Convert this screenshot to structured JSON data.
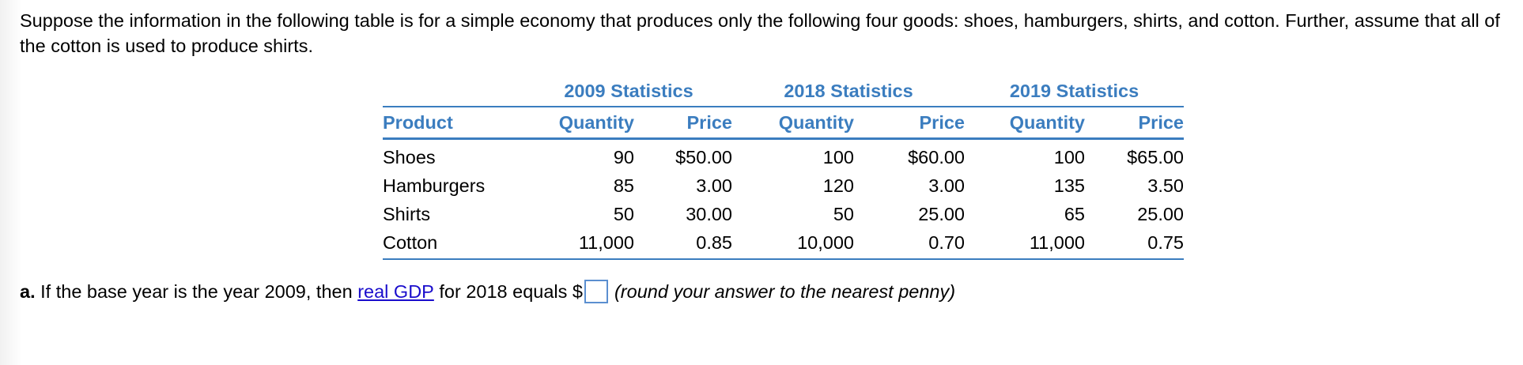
{
  "intro_text": "Suppose the information in the following table is for a simple economy that produces only the following four goods: shoes, hamburgers, shirts, and cotton.  Further, assume that all of the cotton is used to produce shirts.",
  "table": {
    "year_headers": [
      "2009 Statistics",
      "2018 Statistics",
      "2019 Statistics"
    ],
    "columns": [
      "Product",
      "Quantity",
      "Price",
      "Quantity",
      "Price",
      "Quantity",
      "Price"
    ],
    "rows": [
      {
        "product": "Shoes",
        "cells": [
          "90",
          "$50.00",
          "100",
          "$60.00",
          "100",
          "$65.00"
        ]
      },
      {
        "product": "Hamburgers",
        "cells": [
          "85",
          "3.00",
          "120",
          "3.00",
          "135",
          "3.50"
        ]
      },
      {
        "product": "Shirts",
        "cells": [
          "50",
          "30.00",
          "50",
          "25.00",
          "65",
          "25.00"
        ]
      },
      {
        "product": "Cotton",
        "cells": [
          "11,000",
          "0.85",
          "10,000",
          "0.70",
          "11,000",
          "0.75"
        ]
      }
    ]
  },
  "question": {
    "label": "a.",
    "text_before": " If the base year is the year 2009, then ",
    "link_text": "real GDP",
    "text_after": " for 2018 equals $",
    "answer_value": "",
    "hint": "(round your answer to the nearest penny)"
  },
  "colors": {
    "header_blue": "#3b7dbf",
    "link_blue": "#1a0dcc"
  }
}
